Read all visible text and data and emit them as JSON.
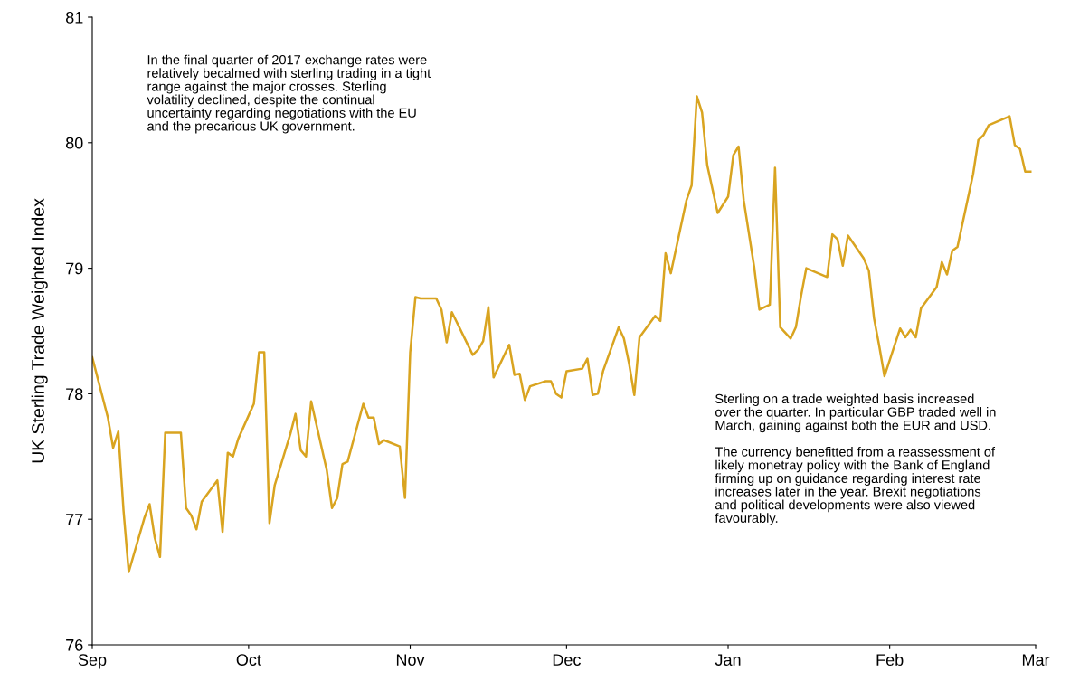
{
  "chart_data": {
    "type": "line",
    "ylabel": "UK Sterling Trade Weighted Index",
    "x": [
      "2017-09-01",
      "2017-09-04",
      "2017-09-05",
      "2017-09-06",
      "2017-09-07",
      "2017-09-08",
      "2017-09-11",
      "2017-09-12",
      "2017-09-13",
      "2017-09-14",
      "2017-09-15",
      "2017-09-18",
      "2017-09-19",
      "2017-09-20",
      "2017-09-21",
      "2017-09-22",
      "2017-09-25",
      "2017-09-26",
      "2017-09-27",
      "2017-09-28",
      "2017-09-29",
      "2017-10-02",
      "2017-10-03",
      "2017-10-04",
      "2017-10-05",
      "2017-10-06",
      "2017-10-09",
      "2017-10-10",
      "2017-10-11",
      "2017-10-12",
      "2017-10-13",
      "2017-10-16",
      "2017-10-17",
      "2017-10-18",
      "2017-10-19",
      "2017-10-20",
      "2017-10-23",
      "2017-10-24",
      "2017-10-25",
      "2017-10-26",
      "2017-10-27",
      "2017-10-30",
      "2017-10-31",
      "2017-11-01",
      "2017-11-02",
      "2017-11-03",
      "2017-11-06",
      "2017-11-07",
      "2017-11-08",
      "2017-11-09",
      "2017-11-13",
      "2017-11-14",
      "2017-11-15",
      "2017-11-16",
      "2017-11-17",
      "2017-11-20",
      "2017-11-21",
      "2017-11-22",
      "2017-11-23",
      "2017-11-24",
      "2017-11-27",
      "2017-11-28",
      "2017-11-29",
      "2017-11-30",
      "2017-12-01",
      "2017-12-04",
      "2017-12-05",
      "2017-12-06",
      "2017-12-07",
      "2017-12-08",
      "2017-12-11",
      "2017-12-12",
      "2017-12-13",
      "2017-12-14",
      "2017-12-15",
      "2017-12-18",
      "2017-12-19",
      "2017-12-20",
      "2017-12-21",
      "2017-12-24",
      "2017-12-25",
      "2017-12-26",
      "2017-12-27",
      "2017-12-28",
      "2017-12-30",
      "2018-01-01",
      "2018-01-02",
      "2018-01-03",
      "2018-01-04",
      "2018-01-06",
      "2018-01-07",
      "2018-01-09",
      "2018-01-10",
      "2018-01-11",
      "2018-01-13",
      "2018-01-14",
      "2018-01-15",
      "2018-01-16",
      "2018-01-20",
      "2018-01-21",
      "2018-01-22",
      "2018-01-23",
      "2018-01-24",
      "2018-01-27",
      "2018-01-28",
      "2018-01-29",
      "2018-01-30",
      "2018-01-31",
      "2018-02-03",
      "2018-02-04",
      "2018-02-05",
      "2018-02-06",
      "2018-02-07",
      "2018-02-10",
      "2018-02-11",
      "2018-02-12",
      "2018-02-13",
      "2018-02-14",
      "2018-02-17",
      "2018-02-18",
      "2018-02-19",
      "2018-02-20",
      "2018-02-24",
      "2018-02-25",
      "2018-02-26",
      "2018-02-27",
      "2018-02-28"
    ],
    "series": [
      {
        "color": "#d9a420",
        "values": [
          78.29,
          77.81,
          77.57,
          77.7,
          77.07,
          76.58,
          77.01,
          77.12,
          76.85,
          76.7,
          77.69,
          77.69,
          77.09,
          77.03,
          76.92,
          77.14,
          77.31,
          76.9,
          77.53,
          77.5,
          77.64,
          77.92,
          78.33,
          78.33,
          76.97,
          77.27,
          77.68,
          77.84,
          77.55,
          77.5,
          77.94,
          77.39,
          77.09,
          77.17,
          77.44,
          77.46,
          77.92,
          77.81,
          77.81,
          77.6,
          77.63,
          77.58,
          77.17,
          78.33,
          78.77,
          78.76,
          78.76,
          78.67,
          78.41,
          78.65,
          78.31,
          78.35,
          78.42,
          78.69,
          78.13,
          78.39,
          78.15,
          78.16,
          77.95,
          78.06,
          78.1,
          78.1,
          78.0,
          77.97,
          78.18,
          78.2,
          78.28,
          77.99,
          78.0,
          78.18,
          78.53,
          78.44,
          78.24,
          77.99,
          78.45,
          78.62,
          78.58,
          79.12,
          78.96,
          79.54,
          79.66,
          80.37,
          80.24,
          79.82,
          79.44,
          79.57,
          79.9,
          79.97,
          79.54,
          79.01,
          78.67,
          78.71,
          79.8,
          78.53,
          78.44,
          78.53,
          78.78,
          79.0,
          78.93,
          79.27,
          79.23,
          79.02,
          79.26,
          79.08,
          78.98,
          78.6,
          78.38,
          78.14,
          78.52,
          78.45,
          78.51,
          78.45,
          78.68,
          78.85,
          79.05,
          78.95,
          79.14,
          79.17,
          79.75,
          80.02,
          80.06,
          80.14,
          80.21,
          79.98,
          79.95,
          79.77,
          79.77
        ]
      }
    ],
    "xlim": [
      "2017-09-01",
      "2018-03-01"
    ],
    "xticks": [
      {
        "value": "2017-09-01",
        "label": "Sep"
      },
      {
        "value": "2017-10-01",
        "label": "Oct"
      },
      {
        "value": "2017-11-01",
        "label": "Nov"
      },
      {
        "value": "2017-12-01",
        "label": "Dec"
      },
      {
        "value": "2018-01-01",
        "label": "Jan"
      },
      {
        "value": "2018-02-01",
        "label": "Feb"
      },
      {
        "value": "2018-03-01",
        "label": "Mar"
      }
    ],
    "ylim": [
      76,
      81
    ],
    "yticks": [
      76,
      77,
      78,
      79,
      80,
      81
    ],
    "grid": false,
    "legend": false,
    "marker": "none",
    "line_style": "solid",
    "annotations": [
      "In the final quarter of 2017 exchange rates were\nrelatively becalmed with sterling trading in a tight\nrange against the major crosses. Sterling\nvolatility declined, despite the continual\nuncertainty regarding negotiations with the EU\nand the precarious UK government.",
      "Sterling on a trade weighted basis increased\nover the quarter. In particular GBP traded well in\nMarch, gaining against both the EUR and USD.\n\nThe currency benefitted from a reassessment of\nlikely monetray policy with the Bank of England\nfirming up on guidance regarding interest rate\nincreases later in the year. Brexit negotiations\nand political developments were also viewed\nfavourably."
    ]
  }
}
